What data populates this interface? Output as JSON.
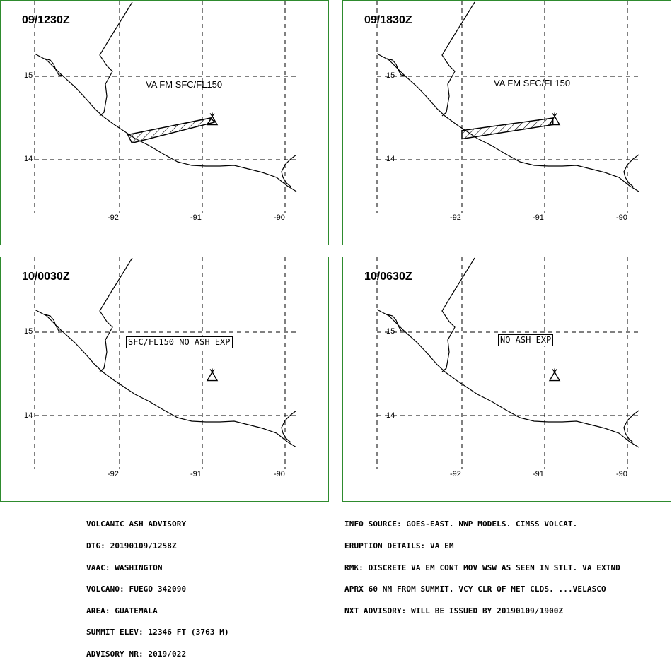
{
  "panels": [
    {
      "time": "09/1230Z",
      "label": "VA FM SFC/FL150",
      "label_boxed": false,
      "ash": [
        [
          -91.9,
          14.3
        ],
        [
          -90.9,
          14.5
        ],
        [
          -90.85,
          14.45
        ],
        [
          -91.85,
          14.2
        ]
      ]
    },
    {
      "time": "09/1830Z",
      "label": "VA FM SFC/FL150",
      "label_boxed": false,
      "ash": [
        [
          -92,
          14.35
        ],
        [
          -90.9,
          14.5
        ],
        [
          -90.9,
          14.42
        ],
        [
          -92,
          14.25
        ]
      ]
    },
    {
      "time": "10/0030Z",
      "label": "SFC/FL150 NO ASH EXP",
      "label_boxed": true,
      "ash": []
    },
    {
      "time": "10/0630Z",
      "label": "NO ASH EXP",
      "label_boxed": true,
      "ash": []
    }
  ],
  "axes": {
    "lon_ticks": [
      "-92",
      "-91",
      "-90"
    ],
    "lat_ticks": [
      "15",
      "14"
    ]
  },
  "volcano": {
    "name": "FUEGO",
    "lon": -90.88,
    "lat": 14.47
  },
  "advisory_left": [
    "VOLCANIC ASH ADVISORY",
    "DTG: 20190109/1258Z",
    "VAAC: WASHINGTON",
    "VOLCANO: FUEGO 342090",
    "AREA: GUATEMALA",
    "SUMMIT ELEV: 12346 FT (3763 M)",
    "ADVISORY NR: 2019/022"
  ],
  "advisory_right": [
    "INFO SOURCE: GOES-EAST. NWP MODELS. CIMSS VOLCAT.",
    "ERUPTION DETAILS: VA EM",
    "RMK: DISCRETE VA EM CONT MOV WSW AS SEEN IN STLT. VA EXTND",
    "APRX 60 NM FROM SUMMIT. VCY CLR OF MET CLDS. ...VELASCO",
    "NXT ADVISORY: WILL BE ISSUED BY 20190109/1900Z"
  ]
}
